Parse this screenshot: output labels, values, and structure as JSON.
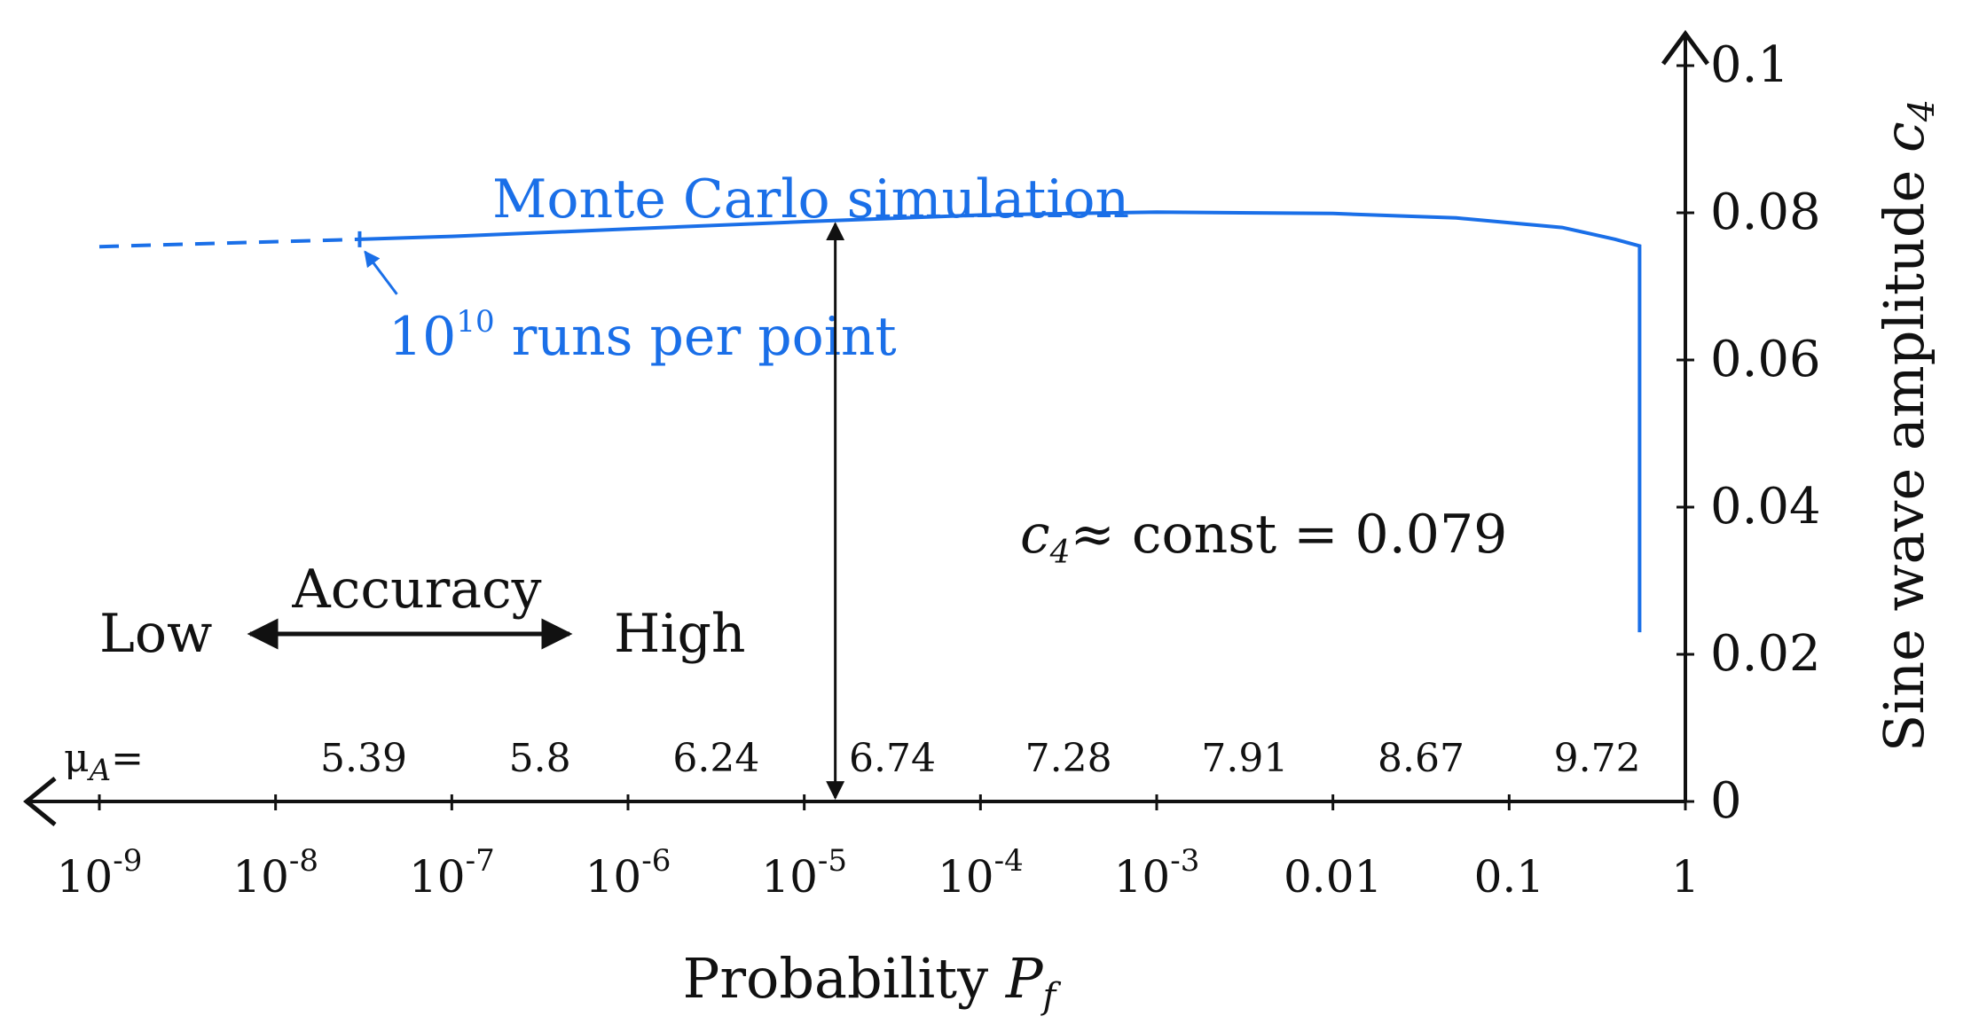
{
  "chart_data": {
    "type": "line",
    "x_axis": {
      "scale": "log",
      "direction": "reversed",
      "label_prefix": "Probability ",
      "label_var": "P",
      "label_sub": "f",
      "ticks": [
        {
          "value": 1e-09,
          "base": "10",
          "exp": "-9"
        },
        {
          "value": 1e-08,
          "base": "10",
          "exp": "-8"
        },
        {
          "value": 1e-07,
          "base": "10",
          "exp": "-7"
        },
        {
          "value": 1e-06,
          "base": "10",
          "exp": "-6"
        },
        {
          "value": 1e-05,
          "base": "10",
          "exp": "-5"
        },
        {
          "value": 0.0001,
          "base": "10",
          "exp": "-4"
        },
        {
          "value": 0.001,
          "base": "10",
          "exp": "-3"
        },
        {
          "value": 0.01,
          "base": "0.01",
          "exp": ""
        },
        {
          "value": 0.1,
          "base": "0.1",
          "exp": ""
        },
        {
          "value": 1,
          "base": "1",
          "exp": ""
        }
      ],
      "range": [
        1e-09,
        1
      ]
    },
    "mu_row": {
      "label_var": "μ",
      "label_sub": "A",
      "label_eq": "=",
      "values": [
        "5.39",
        "5.8",
        "6.24",
        "6.74",
        "7.28",
        "7.91",
        "8.67",
        "9.72"
      ]
    },
    "y_axis": {
      "label_prefix": "Sine wave amplitude ",
      "label_var": "c",
      "label_sub": "4",
      "ticks": [
        "0",
        "0.02",
        "0.04",
        "0.06",
        "0.08",
        "0.1"
      ],
      "range": [
        0,
        0.1
      ]
    },
    "series": [
      {
        "name": "Monte Carlo simulation",
        "color": "#1a6fe8",
        "dashed_points": [
          [
            1e-09,
            0.0754
          ],
          [
            3e-08,
            0.0764
          ]
        ],
        "solid_points": [
          [
            3e-08,
            0.0764
          ],
          [
            1e-07,
            0.0768
          ],
          [
            1e-06,
            0.0778
          ],
          [
            1e-05,
            0.0788
          ],
          [
            0.0001,
            0.0797
          ],
          [
            0.001,
            0.0801
          ],
          [
            0.01,
            0.0799
          ],
          [
            0.05,
            0.0793
          ],
          [
            0.2,
            0.078
          ],
          [
            0.4,
            0.0764
          ],
          [
            0.55,
            0.0755
          ],
          [
            0.55,
            0.023
          ]
        ]
      }
    ],
    "annotations": {
      "runs_marker_x": 3e-08,
      "runs_base": "10",
      "runs_exp": "10",
      "runs_text": " runs per point",
      "const_arrow_x": 1.5e-05,
      "const_value": 0.079,
      "const_var": "c",
      "const_sub": "4",
      "const_text": "≈ const = 0.079",
      "accuracy_label": "Accuracy",
      "accuracy_low": "Low",
      "accuracy_high": "High"
    }
  }
}
